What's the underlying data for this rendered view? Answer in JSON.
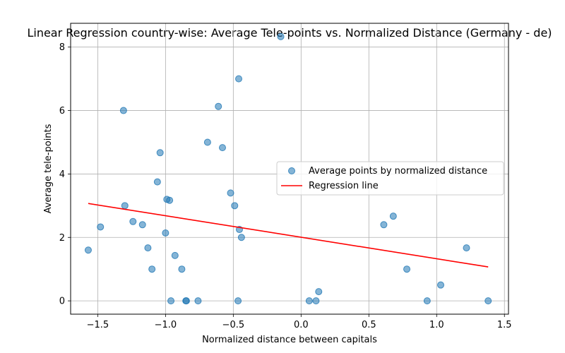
{
  "chart_data": {
    "type": "scatter",
    "title": "Linear Regression country-wise: Average Tele-points vs. Normalized Distance (Germany - de)",
    "xlabel": "Normalized distance between capitals",
    "ylabel": "Average tele-points",
    "xlim": [
      -1.7,
      1.53
    ],
    "ylim": [
      -0.42,
      8.75
    ],
    "xticks": [
      -1.5,
      -1.0,
      -0.5,
      0.0,
      0.5,
      1.0,
      1.5
    ],
    "xtick_labels": [
      "−1.5",
      "−1.0",
      "−0.5",
      "0.0",
      "0.5",
      "1.0",
      "1.5"
    ],
    "yticks": [
      0,
      2,
      4,
      6,
      8
    ],
    "ytick_labels": [
      "0",
      "2",
      "4",
      "6",
      "8"
    ],
    "grid": true,
    "legend_position": "center-right",
    "series": [
      {
        "name": "Average points by normalized distance",
        "kind": "scatter",
        "color": "#1f77b4",
        "points": [
          [
            -1.57,
            1.6
          ],
          [
            -1.48,
            2.33
          ],
          [
            -1.31,
            6.0
          ],
          [
            -1.3,
            3.0
          ],
          [
            -1.24,
            2.5
          ],
          [
            -1.17,
            2.4
          ],
          [
            -1.13,
            1.67
          ],
          [
            -1.1,
            1.0
          ],
          [
            -1.06,
            3.75
          ],
          [
            -1.04,
            4.67
          ],
          [
            -1.0,
            2.14
          ],
          [
            -0.99,
            3.2
          ],
          [
            -0.97,
            3.17
          ],
          [
            -0.96,
            0.0
          ],
          [
            -0.93,
            1.43
          ],
          [
            -0.88,
            1.0
          ],
          [
            -0.85,
            0.0
          ],
          [
            -0.846,
            0.0
          ],
          [
            -0.76,
            0.0
          ],
          [
            -0.69,
            5.0
          ],
          [
            -0.61,
            6.13
          ],
          [
            -0.58,
            4.83
          ],
          [
            -0.52,
            3.4
          ],
          [
            -0.49,
            3.0
          ],
          [
            -0.465,
            0.0
          ],
          [
            -0.46,
            7.0
          ],
          [
            -0.455,
            2.25
          ],
          [
            -0.44,
            2.0
          ],
          [
            -0.15,
            8.33
          ],
          [
            0.06,
            0.0
          ],
          [
            0.11,
            0.0
          ],
          [
            0.13,
            0.29
          ],
          [
            0.61,
            2.4
          ],
          [
            0.68,
            2.67
          ],
          [
            0.78,
            1.0
          ],
          [
            0.93,
            0.0
          ],
          [
            1.03,
            0.5
          ],
          [
            1.22,
            1.67
          ],
          [
            1.38,
            0.0
          ]
        ]
      },
      {
        "name": "Regression line",
        "kind": "line",
        "color": "#ff0000",
        "x": [
          -1.57,
          1.38
        ],
        "y": [
          3.07,
          1.07
        ]
      }
    ]
  }
}
